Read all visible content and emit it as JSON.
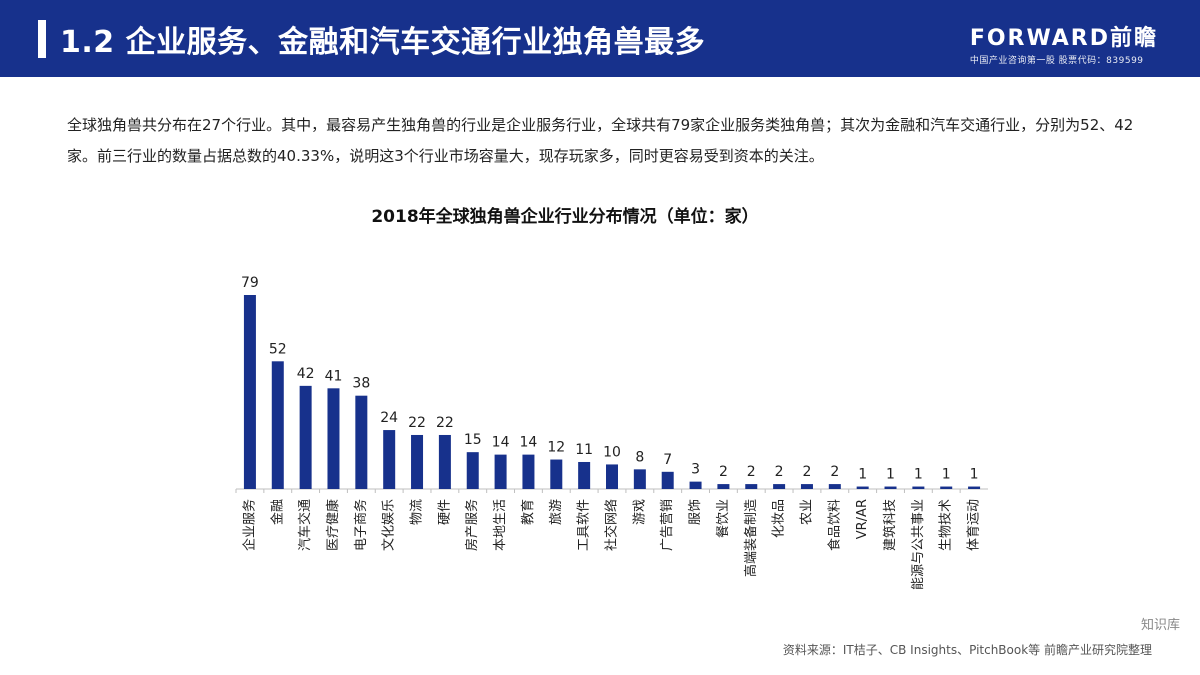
{
  "header": {
    "title": "1.2 企业服务、金融和汽车交通行业独角兽最多",
    "brand": "FORWARD前瞻",
    "brand_sub": "中国产业咨询第一股 股票代码：839599"
  },
  "intro": "全球独角兽共分布在27个行业。其中，最容易产生独角兽的行业是企业服务行业，全球共有79家企业服务类独角兽；其次为金融和汽车交通行业，分别为52、42家。前三行业的数量占据总数的40.33%，说明这3个行业市场容量大，现存玩家多，同时更容易受到资本的关注。",
  "chart_data": {
    "type": "bar",
    "title": "2018年全球独角兽企业行业分布情况（单位：家）",
    "categories": [
      "企业服务",
      "金融",
      "汽车交通",
      "医疗健康",
      "电子商务",
      "文化娱乐",
      "物流",
      "硬件",
      "房产服务",
      "本地生活",
      "教育",
      "旅游",
      "工具软件",
      "社交网络",
      "游戏",
      "广告营销",
      "服饰",
      "餐饮业",
      "高端装备制造",
      "化妆品",
      "农业",
      "食品饮料",
      "VR/AR",
      "建筑科技",
      "能源与公共事业",
      "生物技术",
      "体育运动"
    ],
    "values": [
      79,
      52,
      42,
      41,
      38,
      24,
      22,
      22,
      15,
      14,
      14,
      12,
      11,
      10,
      8,
      7,
      3,
      2,
      2,
      2,
      2,
      2,
      1,
      1,
      1,
      1,
      1
    ],
    "bar_color": "#17318c",
    "xlabel": "",
    "ylabel": "",
    "ylim": [
      0,
      80
    ],
    "grid": false
  },
  "source": "资料来源：IT桔子、CB Insights、PitchBook等 前瞻产业研究院整理",
  "badge": "知识库",
  "colors": {
    "header_bg": "#17318c",
    "bar": "#17318c"
  }
}
